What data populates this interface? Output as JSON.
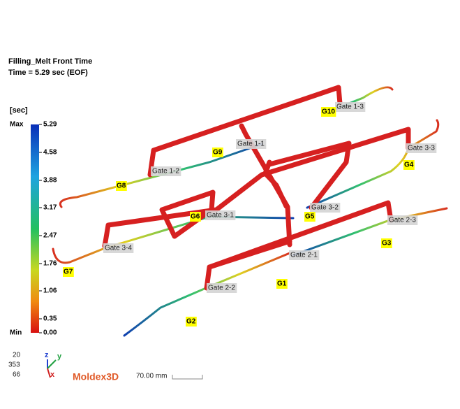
{
  "header": {
    "title": "Filling_Melt Front Time",
    "time": "Time = 5.29 sec (EOF)"
  },
  "legend": {
    "unit": "[sec]",
    "max": "Max",
    "min": "Min",
    "ticks": [
      "5.29",
      "4.58",
      "3.88",
      "3.17",
      "2.47",
      "1.76",
      "1.06",
      "0.35",
      "0.00"
    ]
  },
  "gates": [
    "Gate 1-3",
    "Gate 1-1",
    "Gate 1-2",
    "Gate 3-3",
    "Gate 3-2",
    "Gate 3-1",
    "Gate 2-3",
    "Gate 3-4",
    "Gate 2-1",
    "Gate 2-2"
  ],
  "gate_tags": [
    "G10",
    "G9",
    "G8",
    "G4",
    "G6",
    "G5",
    "G3",
    "G7",
    "G1",
    "G2"
  ],
  "view": {
    "angles": [
      "20",
      "353",
      "66"
    ],
    "axes": [
      "z",
      "y",
      "x"
    ]
  },
  "brand": "Moldex3D",
  "scale": "70.00 mm"
}
